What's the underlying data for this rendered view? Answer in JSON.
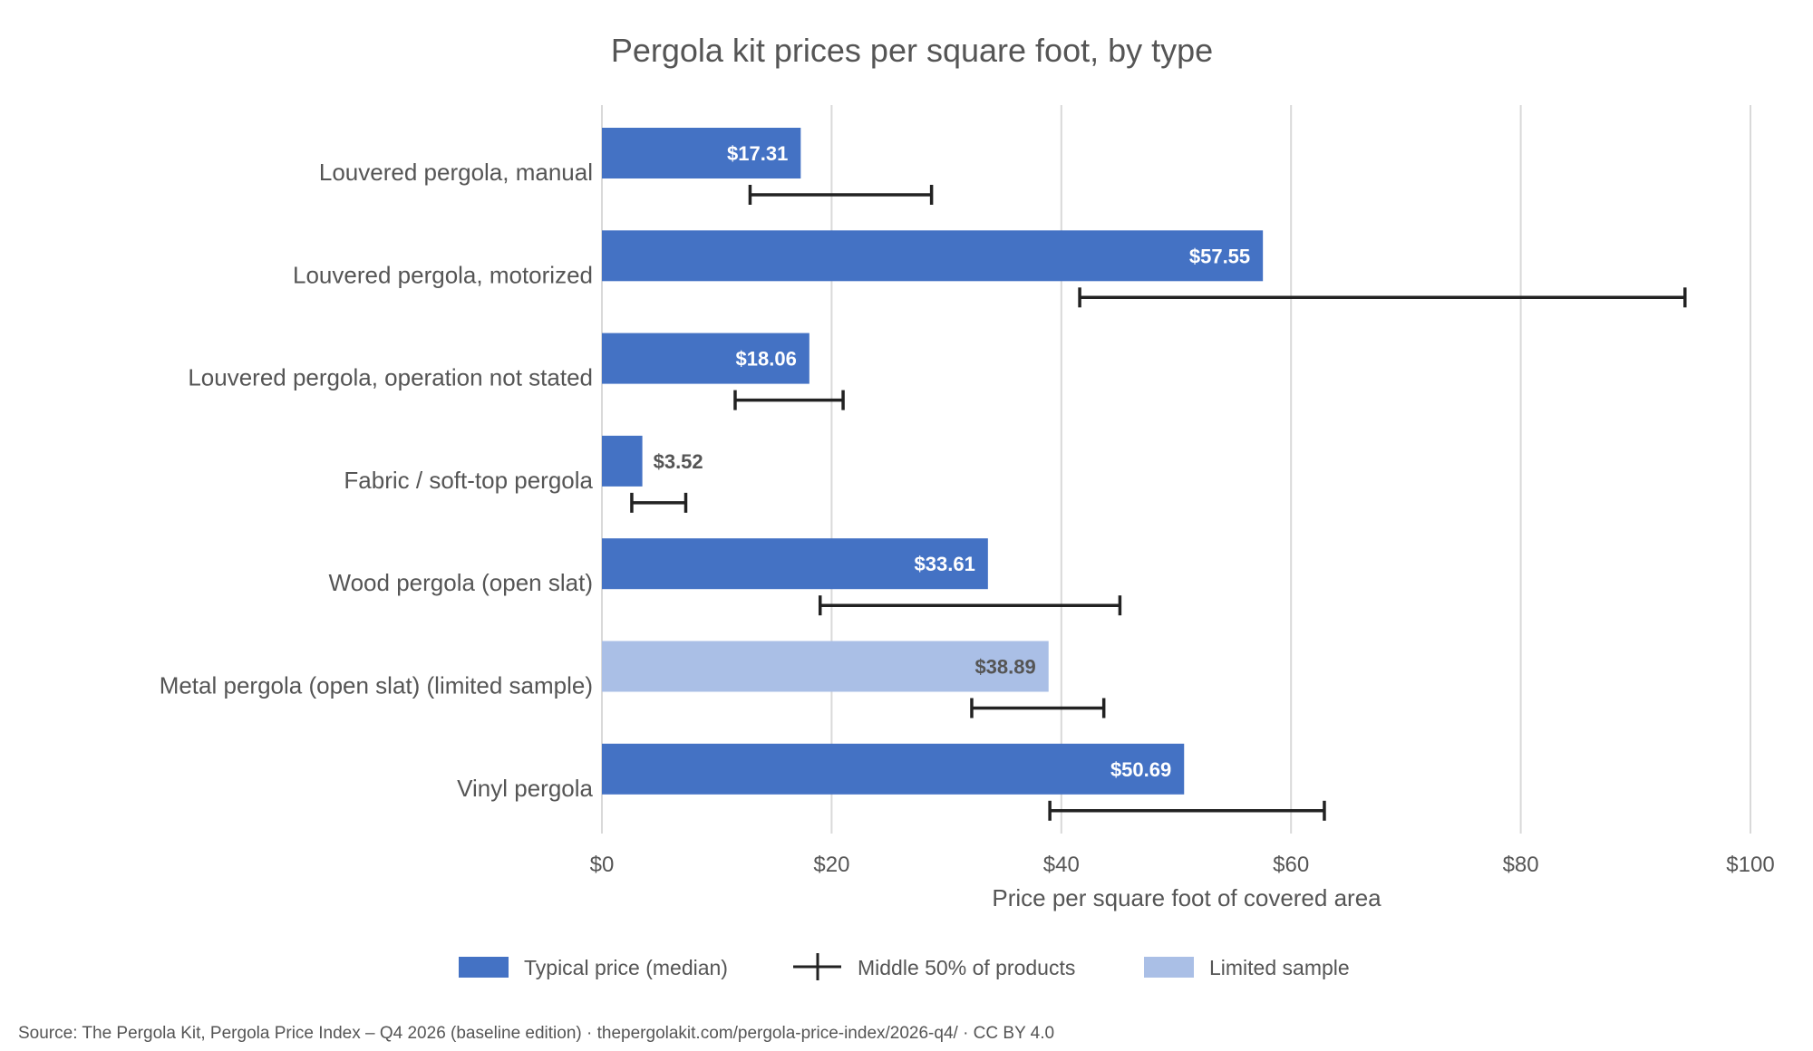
{
  "chart_data": {
    "type": "bar",
    "orientation": "horizontal",
    "title": "Pergola kit prices per square foot, by type",
    "xlabel": "Price per square foot of covered area",
    "xlim": [
      0,
      100
    ],
    "xticks": [
      0,
      20,
      40,
      60,
      80,
      100
    ],
    "xtick_labels": [
      "$0",
      "$20",
      "$40",
      "$60",
      "$80",
      "$100"
    ],
    "grid": "vertical",
    "legend_placement": "bottom",
    "legend": [
      "Typical price (median)",
      "Middle 50% of products",
      "Limited sample"
    ],
    "colors": {
      "median": "#4472c4",
      "limited": "#aabfe6",
      "range": "#222222"
    },
    "categories": [
      "Louvered pergola, manual",
      "Louvered pergola, motorized",
      "Louvered pergola, operation not stated",
      "Fabric / soft-top pergola",
      "Wood pergola (open slat)",
      "Metal pergola (open slat) (limited sample)",
      "Vinyl pergola"
    ],
    "series": [
      {
        "name": "Typical price (median)",
        "values": [
          17.31,
          57.55,
          18.06,
          3.52,
          33.61,
          38.89,
          50.69
        ],
        "labels": [
          "$17.31",
          "$57.55",
          "$18.06",
          "$3.52",
          "$33.61",
          "$38.89",
          "$50.69"
        ],
        "limited_sample": [
          false,
          false,
          false,
          false,
          false,
          true,
          false
        ]
      },
      {
        "name": "Middle 50% of products",
        "low": [
          12.9,
          41.6,
          11.6,
          2.6,
          19.0,
          32.2,
          39.0
        ],
        "high": [
          28.7,
          94.3,
          21.0,
          7.3,
          45.1,
          43.7,
          62.9
        ]
      }
    ],
    "source": "Source: The Pergola Kit, Pergola Price Index – Q4 2026 (baseline edition) · thepergolakit.com/pergola-price-index/2026-q4/ · CC BY 4.0"
  }
}
